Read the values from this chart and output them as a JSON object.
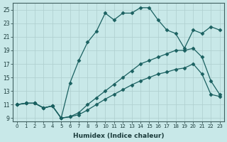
{
  "xlabel": "Humidex (Indice chaleur)",
  "ylabel": "",
  "background_color": "#c8e8e8",
  "grid_color": "#aecece",
  "line_color": "#1a6060",
  "xlim": [
    -0.5,
    23.5
  ],
  "ylim": [
    8.5,
    26.0
  ],
  "xticks": [
    0,
    1,
    2,
    3,
    4,
    5,
    6,
    7,
    8,
    9,
    10,
    11,
    12,
    13,
    14,
    15,
    16,
    17,
    18,
    19,
    20,
    21,
    22,
    23
  ],
  "yticks": [
    9,
    11,
    13,
    15,
    17,
    19,
    21,
    23,
    25
  ],
  "line1_x": [
    0,
    1,
    2,
    3,
    4,
    5,
    6,
    7,
    8,
    9,
    10,
    11,
    12,
    13,
    14,
    15,
    16,
    17,
    18,
    19,
    20,
    21,
    22,
    23
  ],
  "line1_y": [
    11,
    11.2,
    11.2,
    10.5,
    10.8,
    9.0,
    9.2,
    9.5,
    10.2,
    11.0,
    11.8,
    12.5,
    13.2,
    13.9,
    14.5,
    15.0,
    15.5,
    15.8,
    16.2,
    16.4,
    17.0,
    15.5,
    12.5,
    12.2
  ],
  "line2_x": [
    0,
    1,
    2,
    3,
    4,
    5,
    6,
    7,
    8,
    9,
    10,
    11,
    12,
    13,
    14,
    15,
    16,
    17,
    18,
    19,
    20,
    21,
    22,
    23
  ],
  "line2_y": [
    11,
    11.2,
    11.2,
    10.5,
    10.8,
    9.0,
    9.2,
    9.8,
    11.0,
    12.0,
    13.0,
    14.0,
    15.0,
    16.0,
    17.0,
    17.5,
    18.0,
    18.5,
    19.0,
    19.0,
    19.3,
    18.0,
    14.5,
    12.5
  ],
  "line3_x": [
    0,
    1,
    2,
    3,
    4,
    5,
    6,
    7,
    8,
    9,
    10,
    11,
    12,
    13,
    14,
    15,
    16,
    17,
    18,
    19,
    20,
    21,
    22,
    23
  ],
  "line3_y": [
    11,
    11.2,
    11.2,
    10.5,
    10.8,
    9.0,
    14.2,
    17.5,
    20.2,
    21.8,
    24.5,
    23.5,
    24.5,
    24.5,
    25.3,
    25.3,
    23.5,
    22.0,
    21.5,
    19.3,
    22.0,
    21.5,
    22.5,
    22.0
  ]
}
